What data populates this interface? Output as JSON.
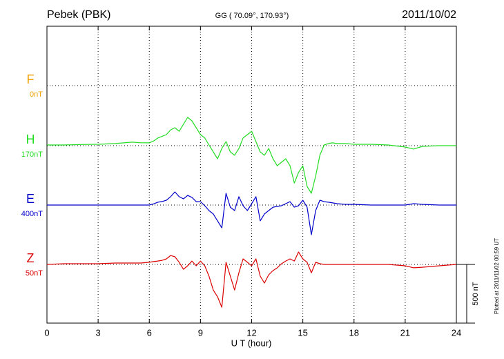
{
  "chart_data": {
    "type": "line",
    "title": "Pebek (PBK)",
    "subtitle": "GG ( 70.09°, 170.93°)",
    "date": "2011/10/02",
    "x_label": "U T (hour)",
    "footnote": "Plotted at 2011/11/02 00:59 UT",
    "xlim": [
      0,
      24
    ],
    "xticks": [
      0,
      3,
      6,
      9,
      12,
      15,
      18,
      21,
      24
    ],
    "grid": true,
    "scale_bar": {
      "value": 500,
      "label": "500 nT"
    },
    "x": [
      0,
      1,
      2,
      3,
      4,
      5,
      5.5,
      6,
      6.25,
      6.5,
      6.75,
      7,
      7.25,
      7.5,
      7.75,
      8,
      8.25,
      8.5,
      8.75,
      9,
      9.25,
      9.5,
      9.75,
      10,
      10.25,
      10.5,
      10.75,
      11,
      11.25,
      11.5,
      11.75,
      12,
      12.25,
      12.5,
      12.75,
      13,
      13.25,
      13.5,
      13.75,
      14,
      14.25,
      14.5,
      14.75,
      15,
      15.25,
      15.5,
      15.75,
      16,
      16.25,
      16.5,
      16.75,
      17,
      17.5,
      18,
      19,
      20,
      21,
      21.5,
      22,
      23,
      24
    ],
    "series": [
      {
        "name": "F",
        "baseline_label": "0nT",
        "color": "#f0a000"
      },
      {
        "name": "H",
        "baseline_label": "170nT",
        "color": "#22dd22",
        "values": [
          6,
          6,
          10,
          12,
          18,
          30,
          25,
          24,
          40,
          65,
          80,
          94,
          135,
          153,
          123,
          182,
          241,
          212,
          153,
          94,
          65,
          6,
          -53,
          -112,
          -24,
          35,
          -53,
          -82,
          -24,
          65,
          94,
          123,
          35,
          -53,
          -82,
          -24,
          -112,
          -171,
          -141,
          -112,
          -171,
          -318,
          -229,
          -171,
          -347,
          -406,
          -259,
          -82,
          6,
          18,
          24,
          18,
          18,
          12,
          12,
          6,
          -12,
          -29,
          -6,
          0,
          0
        ]
      },
      {
        "name": "E",
        "baseline_label": "400nT",
        "color": "#0000cc",
        "values": [
          0,
          0,
          0,
          0,
          0,
          0,
          0,
          0,
          10,
          24,
          30,
          41,
          71,
          112,
          71,
          53,
          82,
          65,
          29,
          29,
          -6,
          -47,
          -76,
          -135,
          -194,
          100,
          -18,
          -47,
          71,
          -6,
          -47,
          12,
          71,
          -135,
          -76,
          -47,
          -18,
          -12,
          -6,
          12,
          29,
          -18,
          -6,
          41,
          -18,
          -253,
          -47,
          41,
          29,
          24,
          18,
          12,
          6,
          6,
          0,
          0,
          0,
          12,
          6,
          0,
          0
        ]
      },
      {
        "name": "Z",
        "baseline_label": "50nT",
        "color": "#dd0000",
        "values": [
          0,
          6,
          6,
          6,
          12,
          12,
          12,
          18,
          24,
          29,
          35,
          47,
          76,
          65,
          18,
          -41,
          -12,
          29,
          -12,
          29,
          -12,
          -100,
          -218,
          -276,
          -365,
          18,
          -100,
          -218,
          -71,
          47,
          18,
          -12,
          47,
          -100,
          -159,
          -88,
          -53,
          -29,
          6,
          29,
          47,
          29,
          106,
          47,
          18,
          -71,
          18,
          6,
          0,
          0,
          0,
          0,
          0,
          0,
          0,
          0,
          -12,
          -29,
          -24,
          -12,
          0
        ]
      }
    ]
  }
}
